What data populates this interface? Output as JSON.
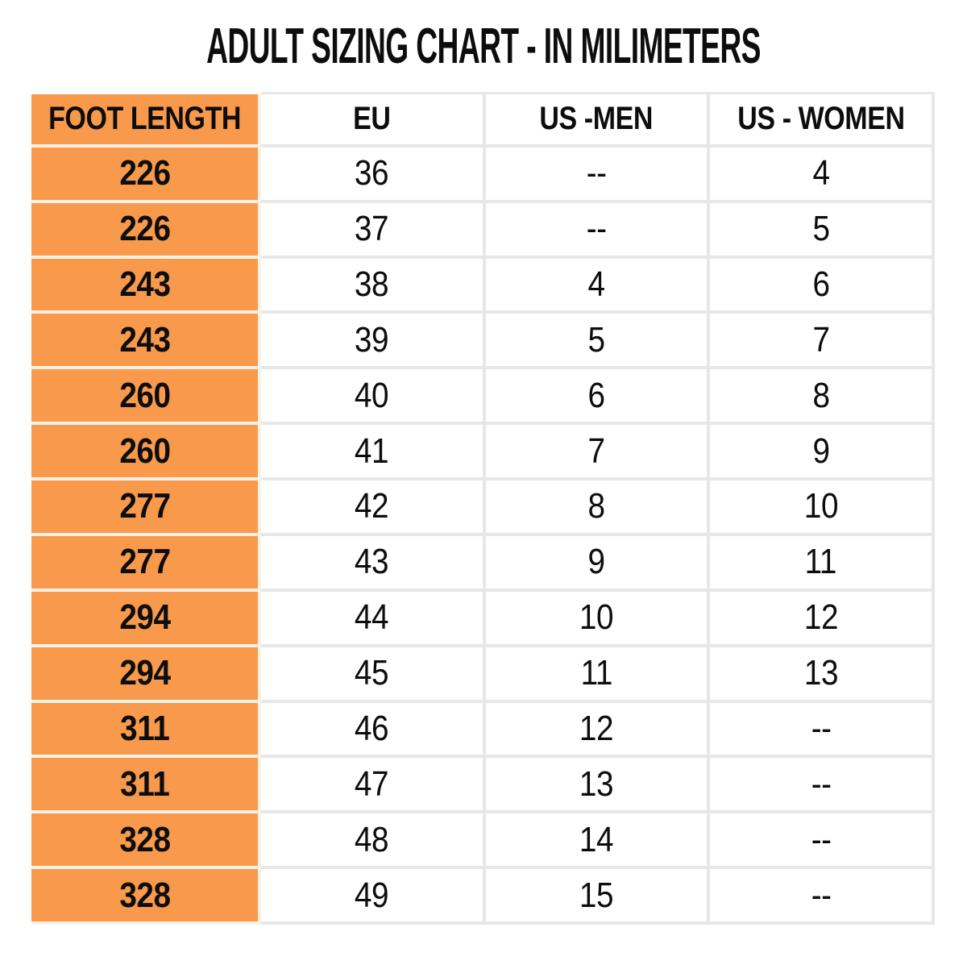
{
  "chart_data": {
    "type": "table",
    "title": "ADULT SIZING CHART - IN MILIMETERS",
    "columns": [
      "FOOT LENGTH",
      "EU",
      "US -MEN",
      "US - WOMEN"
    ],
    "rows": [
      [
        "226",
        "36",
        "--",
        "4"
      ],
      [
        "226",
        "37",
        "--",
        "5"
      ],
      [
        "243",
        "38",
        "4",
        "6"
      ],
      [
        "243",
        "39",
        "5",
        "7"
      ],
      [
        "260",
        "40",
        "6",
        "8"
      ],
      [
        "260",
        "41",
        "7",
        "9"
      ],
      [
        "277",
        "42",
        "8",
        "10"
      ],
      [
        "277",
        "43",
        "9",
        "11"
      ],
      [
        "294",
        "44",
        "10",
        "12"
      ],
      [
        "294",
        "45",
        "11",
        "13"
      ],
      [
        "311",
        "46",
        "12",
        "--"
      ],
      [
        "311",
        "47",
        "13",
        "--"
      ],
      [
        "328",
        "48",
        "14",
        "--"
      ],
      [
        "328",
        "49",
        "15",
        "--"
      ]
    ],
    "layout": {
      "header_column_highlighted": "FOOT LENGTH",
      "grid": "on",
      "legend": "none"
    }
  },
  "colors": {
    "highlight_fill": "#F8994B",
    "gridline": "#E7E7E7",
    "highlight_divider": "#FBF1E6",
    "text": "#0D0D0D",
    "background": "#FFFFFF"
  }
}
